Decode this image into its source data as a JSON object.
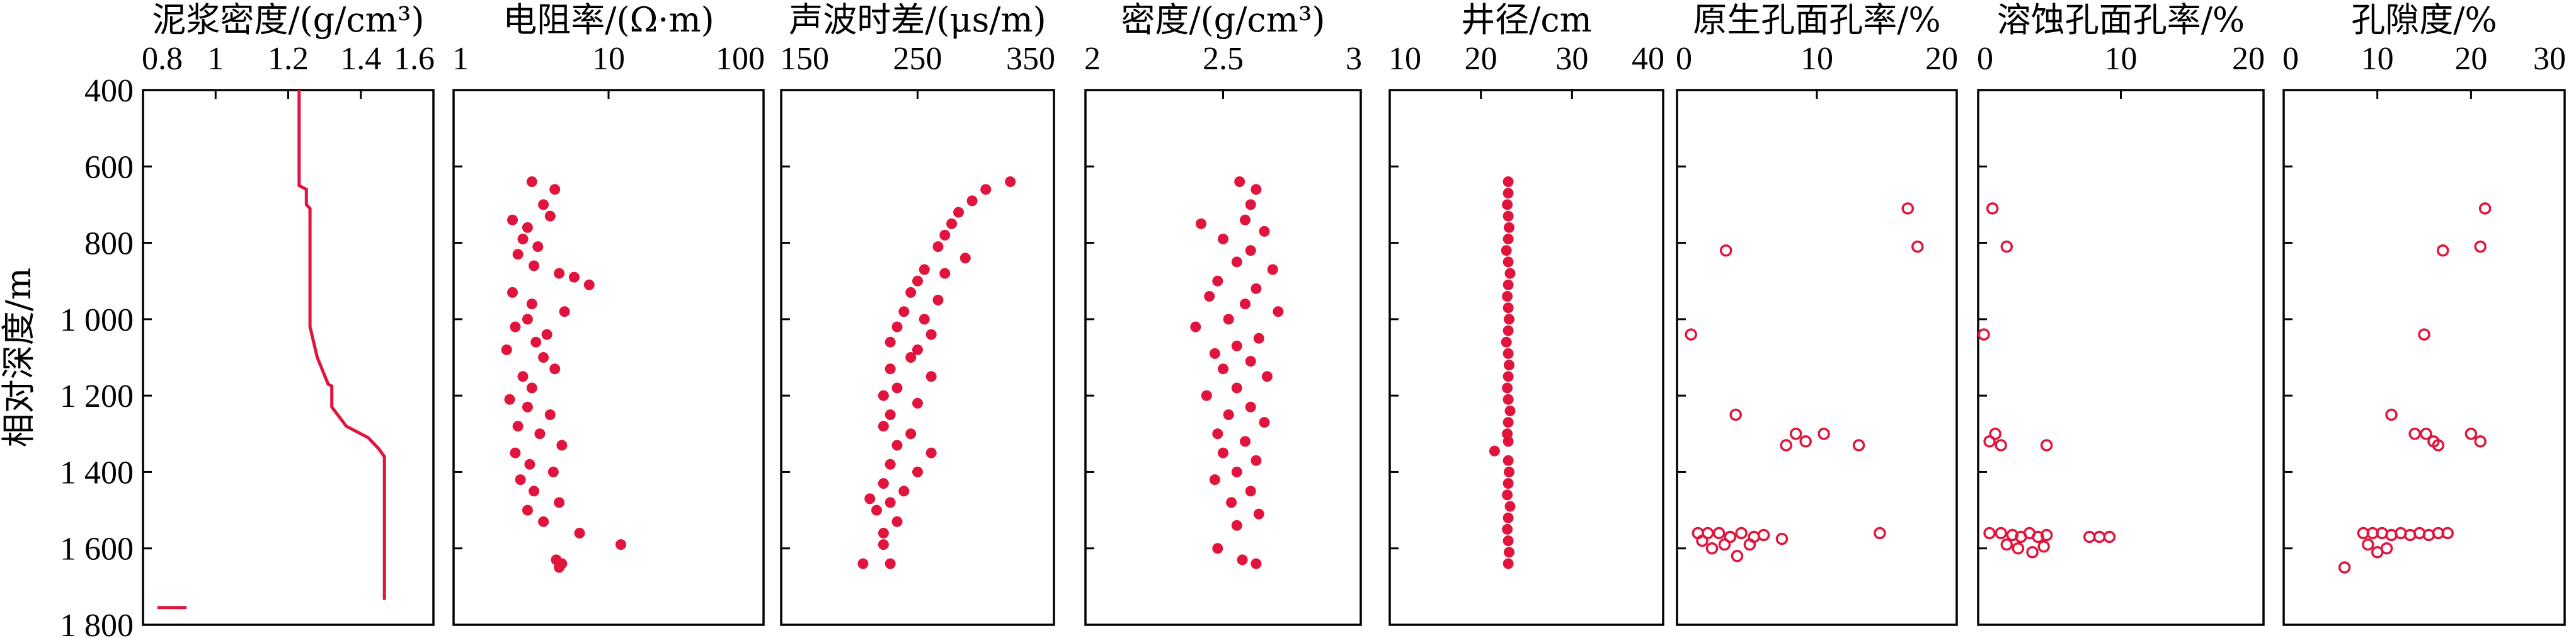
{
  "colors": {
    "series": "#e0143c",
    "axis": "#000000"
  },
  "chart_data": {
    "type": "scatter",
    "y_axis": {
      "label": "相对深度/m",
      "range": [
        400,
        1800
      ],
      "inverted": true,
      "ticks": [
        400,
        600,
        800,
        1000,
        1200,
        1400,
        1600,
        1800
      ],
      "tick_labels": [
        "400",
        "600",
        "800",
        "1 000",
        "1 200",
        "1 400",
        "1 600",
        "1 800"
      ]
    },
    "panels": [
      {
        "title": "泥浆密度/(g/cm³)",
        "type": "line",
        "xlim": [
          0.8,
          1.6
        ],
        "x_ticks": [
          0.8,
          1.0,
          1.2,
          1.4,
          1.6
        ],
        "x_tick_labels": [
          "0.8",
          "1",
          "1.2",
          "1.4",
          "1.6"
        ],
        "line": [
          [
            1.23,
            400
          ],
          [
            1.23,
            650
          ],
          [
            1.25,
            660
          ],
          [
            1.25,
            700
          ],
          [
            1.26,
            710
          ],
          [
            1.26,
            1020
          ],
          [
            1.28,
            1100
          ],
          [
            1.31,
            1170
          ],
          [
            1.32,
            1175
          ],
          [
            1.32,
            1230
          ],
          [
            1.36,
            1280
          ],
          [
            1.42,
            1310
          ],
          [
            1.45,
            1340
          ],
          [
            1.465,
            1360
          ],
          [
            1.465,
            1735
          ]
        ],
        "segment": [
          [
            0.84,
            1755
          ],
          [
            0.92,
            1755
          ]
        ]
      },
      {
        "title": "电阻率/(Ω·m)",
        "type": "scatter",
        "scale": "log",
        "xlim": [
          1,
          100
        ],
        "x_ticks": [
          1,
          10,
          100
        ],
        "x_tick_labels": [
          "1",
          "10",
          "100"
        ],
        "points": [
          [
            3.2,
            640
          ],
          [
            4.5,
            660
          ],
          [
            3.8,
            700
          ],
          [
            4.2,
            730
          ],
          [
            2.4,
            740
          ],
          [
            3.0,
            760
          ],
          [
            2.8,
            790
          ],
          [
            3.5,
            810
          ],
          [
            2.6,
            830
          ],
          [
            3.3,
            860
          ],
          [
            4.8,
            880
          ],
          [
            6.0,
            890
          ],
          [
            7.5,
            910
          ],
          [
            2.4,
            930
          ],
          [
            3.2,
            960
          ],
          [
            5.2,
            980
          ],
          [
            3.0,
            1000
          ],
          [
            2.5,
            1020
          ],
          [
            4.0,
            1040
          ],
          [
            3.4,
            1060
          ],
          [
            2.2,
            1080
          ],
          [
            3.8,
            1100
          ],
          [
            4.5,
            1130
          ],
          [
            2.8,
            1150
          ],
          [
            3.2,
            1180
          ],
          [
            2.3,
            1210
          ],
          [
            3.0,
            1230
          ],
          [
            4.2,
            1250
          ],
          [
            2.6,
            1280
          ],
          [
            3.6,
            1300
          ],
          [
            5.0,
            1330
          ],
          [
            2.5,
            1350
          ],
          [
            3.1,
            1380
          ],
          [
            4.4,
            1400
          ],
          [
            2.7,
            1420
          ],
          [
            3.3,
            1450
          ],
          [
            4.8,
            1480
          ],
          [
            3.0,
            1500
          ],
          [
            3.8,
            1530
          ],
          [
            6.5,
            1560
          ],
          [
            12.0,
            1590
          ],
          [
            4.6,
            1630
          ],
          [
            5.0,
            1640
          ],
          [
            4.8,
            1650
          ]
        ]
      },
      {
        "title": "声波时差/(μs/m)",
        "type": "scatter",
        "xlim": [
          150,
          350
        ],
        "x_ticks": [
          150,
          250,
          350
        ],
        "x_tick_labels": [
          "150",
          "250",
          "350"
        ],
        "points": [
          [
            318,
            640
          ],
          [
            300,
            660
          ],
          [
            290,
            690
          ],
          [
            280,
            720
          ],
          [
            275,
            750
          ],
          [
            270,
            780
          ],
          [
            265,
            810
          ],
          [
            285,
            840
          ],
          [
            255,
            870
          ],
          [
            270,
            880
          ],
          [
            250,
            900
          ],
          [
            245,
            930
          ],
          [
            265,
            950
          ],
          [
            240,
            980
          ],
          [
            255,
            1000
          ],
          [
            235,
            1020
          ],
          [
            260,
            1040
          ],
          [
            230,
            1060
          ],
          [
            250,
            1080
          ],
          [
            245,
            1100
          ],
          [
            230,
            1130
          ],
          [
            260,
            1150
          ],
          [
            235,
            1180
          ],
          [
            225,
            1200
          ],
          [
            250,
            1220
          ],
          [
            230,
            1250
          ],
          [
            225,
            1280
          ],
          [
            245,
            1300
          ],
          [
            235,
            1330
          ],
          [
            260,
            1350
          ],
          [
            230,
            1380
          ],
          [
            250,
            1400
          ],
          [
            225,
            1430
          ],
          [
            240,
            1450
          ],
          [
            215,
            1470
          ],
          [
            230,
            1480
          ],
          [
            220,
            1500
          ],
          [
            235,
            1530
          ],
          [
            225,
            1560
          ],
          [
            225,
            1590
          ],
          [
            210,
            1640
          ],
          [
            230,
            1640
          ]
        ]
      },
      {
        "title": "密度/(g/cm³)",
        "type": "scatter",
        "xlim": [
          2,
          3
        ],
        "x_ticks": [
          2,
          2.5,
          3
        ],
        "x_tick_labels": [
          "2",
          "2.5",
          "3"
        ],
        "points": [
          [
            2.56,
            640
          ],
          [
            2.62,
            660
          ],
          [
            2.6,
            700
          ],
          [
            2.58,
            740
          ],
          [
            2.42,
            750
          ],
          [
            2.65,
            770
          ],
          [
            2.5,
            790
          ],
          [
            2.6,
            820
          ],
          [
            2.55,
            850
          ],
          [
            2.68,
            870
          ],
          [
            2.48,
            900
          ],
          [
            2.62,
            920
          ],
          [
            2.45,
            940
          ],
          [
            2.58,
            960
          ],
          [
            2.7,
            980
          ],
          [
            2.52,
            1000
          ],
          [
            2.4,
            1020
          ],
          [
            2.63,
            1050
          ],
          [
            2.55,
            1070
          ],
          [
            2.47,
            1090
          ],
          [
            2.6,
            1110
          ],
          [
            2.5,
            1130
          ],
          [
            2.66,
            1150
          ],
          [
            2.55,
            1180
          ],
          [
            2.44,
            1200
          ],
          [
            2.6,
            1230
          ],
          [
            2.52,
            1250
          ],
          [
            2.65,
            1270
          ],
          [
            2.48,
            1300
          ],
          [
            2.58,
            1320
          ],
          [
            2.5,
            1350
          ],
          [
            2.62,
            1370
          ],
          [
            2.55,
            1400
          ],
          [
            2.47,
            1420
          ],
          [
            2.6,
            1450
          ],
          [
            2.53,
            1480
          ],
          [
            2.63,
            1510
          ],
          [
            2.55,
            1540
          ],
          [
            2.48,
            1600
          ],
          [
            2.57,
            1630
          ],
          [
            2.62,
            1640
          ]
        ]
      },
      {
        "title": "井径/cm",
        "type": "scatter",
        "xlim": [
          10,
          40
        ],
        "x_ticks": [
          10,
          20,
          30,
          40
        ],
        "x_tick_labels": [
          "10",
          "20",
          "30",
          "40"
        ],
        "points": [
          [
            23,
            640
          ],
          [
            23,
            670
          ],
          [
            22.9,
            700
          ],
          [
            23,
            730
          ],
          [
            23.1,
            760
          ],
          [
            23,
            790
          ],
          [
            22.8,
            820
          ],
          [
            23,
            850
          ],
          [
            23.2,
            880
          ],
          [
            23,
            910
          ],
          [
            22.9,
            940
          ],
          [
            23,
            970
          ],
          [
            23.1,
            1000
          ],
          [
            23,
            1030
          ],
          [
            22.8,
            1060
          ],
          [
            23,
            1090
          ],
          [
            23.1,
            1120
          ],
          [
            23,
            1150
          ],
          [
            22.9,
            1180
          ],
          [
            23,
            1210
          ],
          [
            23.2,
            1240
          ],
          [
            23,
            1270
          ],
          [
            22.9,
            1300
          ],
          [
            23,
            1320
          ],
          [
            21.5,
            1345
          ],
          [
            23,
            1370
          ],
          [
            23.1,
            1400
          ],
          [
            23,
            1430
          ],
          [
            22.9,
            1460
          ],
          [
            23.2,
            1490
          ],
          [
            23,
            1520
          ],
          [
            22.9,
            1550
          ],
          [
            23,
            1580
          ],
          [
            23.1,
            1610
          ],
          [
            23,
            1640
          ]
        ]
      },
      {
        "title": "原生孔面孔率/%",
        "type": "scatter",
        "marker": "hollow",
        "xlim": [
          0,
          20
        ],
        "x_ticks": [
          0,
          10,
          20
        ],
        "x_tick_labels": [
          "0",
          "10",
          "20"
        ],
        "points": [
          [
            16.5,
            710
          ],
          [
            17.2,
            810
          ],
          [
            3.5,
            820
          ],
          [
            1.0,
            1040
          ],
          [
            4.2,
            1250
          ],
          [
            8.5,
            1300
          ],
          [
            9.2,
            1320
          ],
          [
            7.8,
            1330
          ],
          [
            10.5,
            1300
          ],
          [
            13.0,
            1330
          ],
          [
            14.5,
            1560
          ],
          [
            1.5,
            1560
          ],
          [
            2.2,
            1560
          ],
          [
            3.0,
            1560
          ],
          [
            3.8,
            1570
          ],
          [
            4.6,
            1560
          ],
          [
            5.5,
            1570
          ],
          [
            6.2,
            1565
          ],
          [
            7.5,
            1575
          ],
          [
            1.8,
            1580
          ],
          [
            2.5,
            1600
          ],
          [
            3.4,
            1590
          ],
          [
            4.3,
            1620
          ],
          [
            5.2,
            1590
          ]
        ]
      },
      {
        "title": "溶蚀孔面孔率/%",
        "type": "scatter",
        "marker": "hollow",
        "xlim": [
          0,
          20
        ],
        "x_ticks": [
          0,
          10,
          20
        ],
        "x_tick_labels": [
          "0",
          "10",
          "20"
        ],
        "points": [
          [
            1.0,
            710
          ],
          [
            2.0,
            810
          ],
          [
            0.4,
            1040
          ],
          [
            1.2,
            1300
          ],
          [
            0.8,
            1320
          ],
          [
            1.6,
            1330
          ],
          [
            4.8,
            1330
          ],
          [
            0.8,
            1560
          ],
          [
            1.6,
            1560
          ],
          [
            2.4,
            1565
          ],
          [
            3.0,
            1570
          ],
          [
            3.6,
            1560
          ],
          [
            4.2,
            1570
          ],
          [
            4.8,
            1565
          ],
          [
            7.8,
            1570
          ],
          [
            8.5,
            1570
          ],
          [
            9.2,
            1570
          ],
          [
            2.0,
            1590
          ],
          [
            2.8,
            1600
          ],
          [
            3.8,
            1610
          ],
          [
            4.6,
            1595
          ]
        ]
      },
      {
        "title": "孔隙度/%",
        "type": "scatter",
        "marker": "hollow",
        "xlim": [
          0,
          30
        ],
        "x_ticks": [
          0,
          10,
          20,
          30
        ],
        "x_tick_labels": [
          "0",
          "10",
          "20",
          "30"
        ],
        "points": [
          [
            21.5,
            710
          ],
          [
            21.0,
            810
          ],
          [
            17.0,
            820
          ],
          [
            15.0,
            1040
          ],
          [
            11.5,
            1250
          ],
          [
            14.0,
            1300
          ],
          [
            15.2,
            1300
          ],
          [
            16.0,
            1320
          ],
          [
            16.5,
            1330
          ],
          [
            20.0,
            1300
          ],
          [
            21.0,
            1320
          ],
          [
            8.5,
            1560
          ],
          [
            9.5,
            1560
          ],
          [
            10.5,
            1560
          ],
          [
            11.5,
            1565
          ],
          [
            12.5,
            1560
          ],
          [
            13.5,
            1565
          ],
          [
            14.5,
            1560
          ],
          [
            15.5,
            1565
          ],
          [
            16.5,
            1560
          ],
          [
            17.5,
            1560
          ],
          [
            9.0,
            1590
          ],
          [
            10.0,
            1610
          ],
          [
            11.0,
            1600
          ],
          [
            6.5,
            1650
          ]
        ]
      }
    ]
  }
}
